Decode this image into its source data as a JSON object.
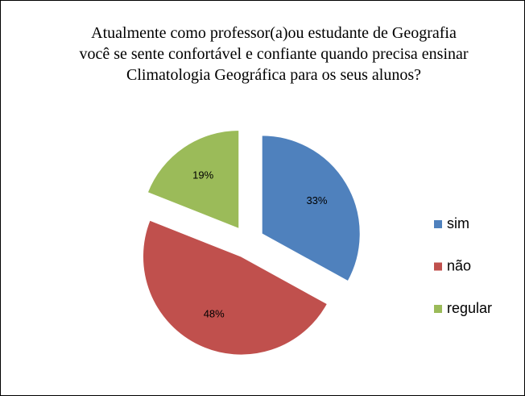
{
  "chart_data": {
    "type": "pie",
    "title": [
      "Atualmente como professor(a)ou estudante de Geografia",
      "você se sente confortável e confiante quando precisa ensinar",
      "Climatologia Geográfica para os seus alunos?"
    ],
    "categories": [
      "sim",
      "não",
      "regular"
    ],
    "values": [
      33,
      48,
      19
    ],
    "value_labels": [
      "33%",
      "48%",
      "19%"
    ],
    "colors": [
      "#4f81bd",
      "#c0504d",
      "#9bbb59"
    ],
    "legend": "right"
  }
}
